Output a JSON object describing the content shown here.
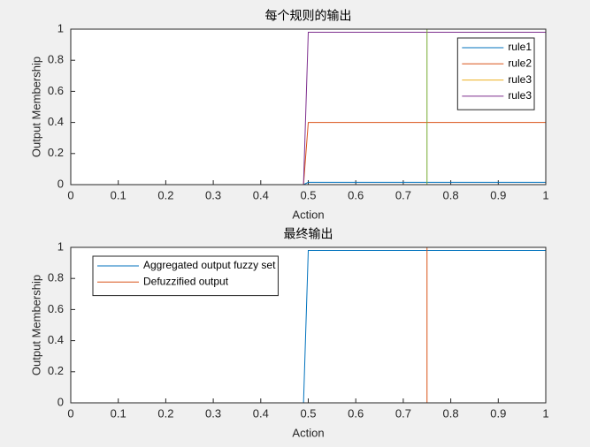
{
  "chart_data": [
    {
      "type": "line",
      "title": "每个规则的输出",
      "xlabel": "Action",
      "ylabel": "Output Membership",
      "xlim": [
        0,
        1
      ],
      "ylim": [
        0,
        1
      ],
      "xticks": [
        0,
        0.1,
        0.2,
        0.3,
        0.4,
        0.5,
        0.6,
        0.7,
        0.8,
        0.9,
        1
      ],
      "yticks": [
        0,
        0.2,
        0.4,
        0.6,
        0.8,
        1
      ],
      "legend": "northeast",
      "series": [
        {
          "name": "rule1",
          "color": "#0072BD",
          "x": [
            0,
            0.49,
            0.5,
            1
          ],
          "values": [
            0,
            0,
            0.015,
            0.015
          ]
        },
        {
          "name": "rule2",
          "color": "#D95319",
          "x": [
            0,
            0.49,
            0.5,
            1
          ],
          "values": [
            0,
            0,
            0.4,
            0.4
          ]
        },
        {
          "name": "rule3",
          "color": "#EDB120",
          "x": [
            0,
            1
          ],
          "values": [
            0,
            0
          ]
        },
        {
          "name": "rule3",
          "color": "#7E2F8E",
          "x": [
            0,
            0.49,
            0.5,
            1
          ],
          "values": [
            0,
            0,
            0.98,
            0.98
          ]
        },
        {
          "color": "#77AC30",
          "x": [
            0.75,
            0.75
          ],
          "values": [
            0,
            1
          ]
        }
      ]
    },
    {
      "type": "line",
      "title": "最终输出",
      "xlabel": "Action",
      "ylabel": "Output Membership",
      "xlim": [
        0,
        1
      ],
      "ylim": [
        0,
        1
      ],
      "xticks": [
        0,
        0.1,
        0.2,
        0.3,
        0.4,
        0.5,
        0.6,
        0.7,
        0.8,
        0.9,
        1
      ],
      "yticks": [
        0,
        0.2,
        0.4,
        0.6,
        0.8,
        1
      ],
      "legend": "northwest",
      "series": [
        {
          "name": "Aggregated output fuzzy set",
          "color": "#0072BD",
          "x": [
            0,
            0.49,
            0.5,
            1
          ],
          "values": [
            0,
            0,
            0.98,
            0.98
          ]
        },
        {
          "name": "Defuzzified output",
          "color": "#D95319",
          "x": [
            0.75,
            0.75
          ],
          "values": [
            0,
            1
          ]
        }
      ]
    }
  ]
}
